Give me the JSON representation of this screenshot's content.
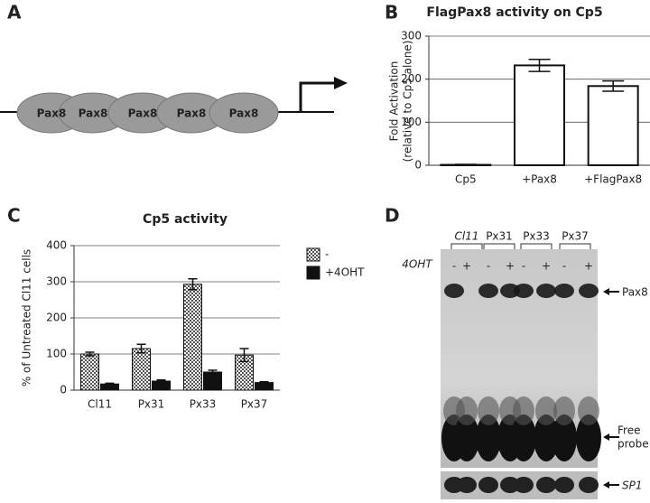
{
  "panels": {
    "a": "A",
    "b": "B",
    "c": "C",
    "d": "D"
  },
  "diagram": {
    "sites": [
      "Pax8",
      "Pax8",
      "Pax8",
      "Pax8",
      "Pax8"
    ]
  },
  "chart_data": [
    {
      "type": "bar",
      "title": "FlagPax8 activity on Cp5",
      "y_label": [
        "Fold Activation",
        "(relative to Cp5 alone)"
      ],
      "categories": [
        "Cp5",
        "+Pax8",
        "+FlagPax8"
      ],
      "series": [
        {
          "color": "#ffffff",
          "values": [
            1,
            232,
            184
          ],
          "errors": [
            1,
            14,
            12
          ]
        }
      ],
      "ylim": [
        0,
        300
      ],
      "yticks": [
        0,
        100,
        200,
        300
      ],
      "grid": true
    },
    {
      "type": "bar",
      "title": "Cp5 activity",
      "y_label": [
        "% of Untreated Cl11 cells"
      ],
      "categories": [
        "Cl11",
        "Px31",
        "Px33",
        "Px37"
      ],
      "series": [
        {
          "name": "-",
          "color": "#b0b0b0",
          "pattern": "checker",
          "values": [
            100,
            115,
            293,
            97
          ],
          "errors": [
            5,
            12,
            15,
            18
          ]
        },
        {
          "name": "+4OHT",
          "color": "#111111",
          "values": [
            17,
            25,
            50,
            21
          ],
          "errors": [
            2,
            3,
            5,
            2
          ]
        }
      ],
      "ylim": [
        0,
        400
      ],
      "yticks": [
        0,
        100,
        200,
        300,
        400
      ],
      "grid": true
    }
  ],
  "gel": {
    "lanes": [
      "Cl11",
      "Px31",
      "Px33",
      "Px37"
    ],
    "treatment": "4OHT",
    "conditions": [
      "-",
      "+",
      "-",
      "+",
      "-",
      "+",
      "-",
      "+"
    ],
    "bands": [
      "Pax8",
      [
        "Free",
        "probe"
      ],
      "SP1"
    ]
  }
}
